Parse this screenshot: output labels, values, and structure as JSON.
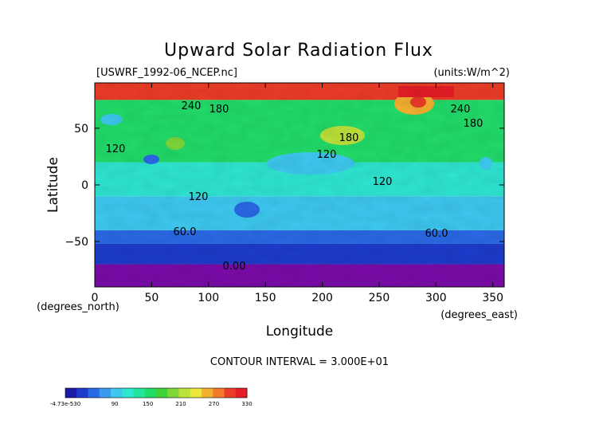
{
  "chart_data": {
    "type": "heatmap",
    "title": "Upward Solar Radiation Flux",
    "file_label": "[USWRF_1992-06_NCEP.nc]",
    "units_label": "(units:W/m^2)",
    "xlabel": "Longitude",
    "ylabel": "Latitude",
    "x_unit_label": "(degrees_east)",
    "y_unit_label": "(degrees_north)",
    "xlim": [
      0,
      360
    ],
    "ylim": [
      -90,
      90
    ],
    "x_ticks": [
      0,
      50,
      100,
      150,
      200,
      250,
      300,
      350
    ],
    "y_ticks": [
      50,
      0,
      -50
    ],
    "contour_interval_text": "CONTOUR INTERVAL = 3.000E+01",
    "contour_labels": [
      "240",
      "180",
      "240",
      "180",
      "120",
      "180",
      "120",
      "120",
      "120",
      "60.0",
      "60.0",
      "0.00"
    ],
    "colorbar": {
      "tick_labels": [
        "-4.73e-530",
        "90",
        "150",
        "210",
        "270",
        "330"
      ],
      "tick_values": [
        0,
        90,
        150,
        210,
        270,
        330
      ],
      "range": [
        0,
        330
      ],
      "colors": [
        "#1a1aa8",
        "#1e3ccc",
        "#2a6ae6",
        "#3a9aee",
        "#3ec8f0",
        "#2ee6d2",
        "#22e6a0",
        "#22dc6a",
        "#3cd43a",
        "#7ed83a",
        "#bde23a",
        "#ece83a",
        "#f4b030",
        "#f27a2a",
        "#ec3c28",
        "#e41e26"
      ]
    },
    "latitude_bands": [
      {
        "lat": [
          -90,
          -70
        ],
        "value": 0
      },
      {
        "lat": [
          -70,
          -52
        ],
        "value": 30
      },
      {
        "lat": [
          -52,
          -40
        ],
        "value": 60
      },
      {
        "lat": [
          -40,
          -10
        ],
        "value": 90
      },
      {
        "lat": [
          -10,
          20
        ],
        "value": 120
      },
      {
        "lat": [
          20,
          75
        ],
        "value": 150
      },
      {
        "lat": [
          75,
          90
        ],
        "value": 300
      }
    ]
  }
}
